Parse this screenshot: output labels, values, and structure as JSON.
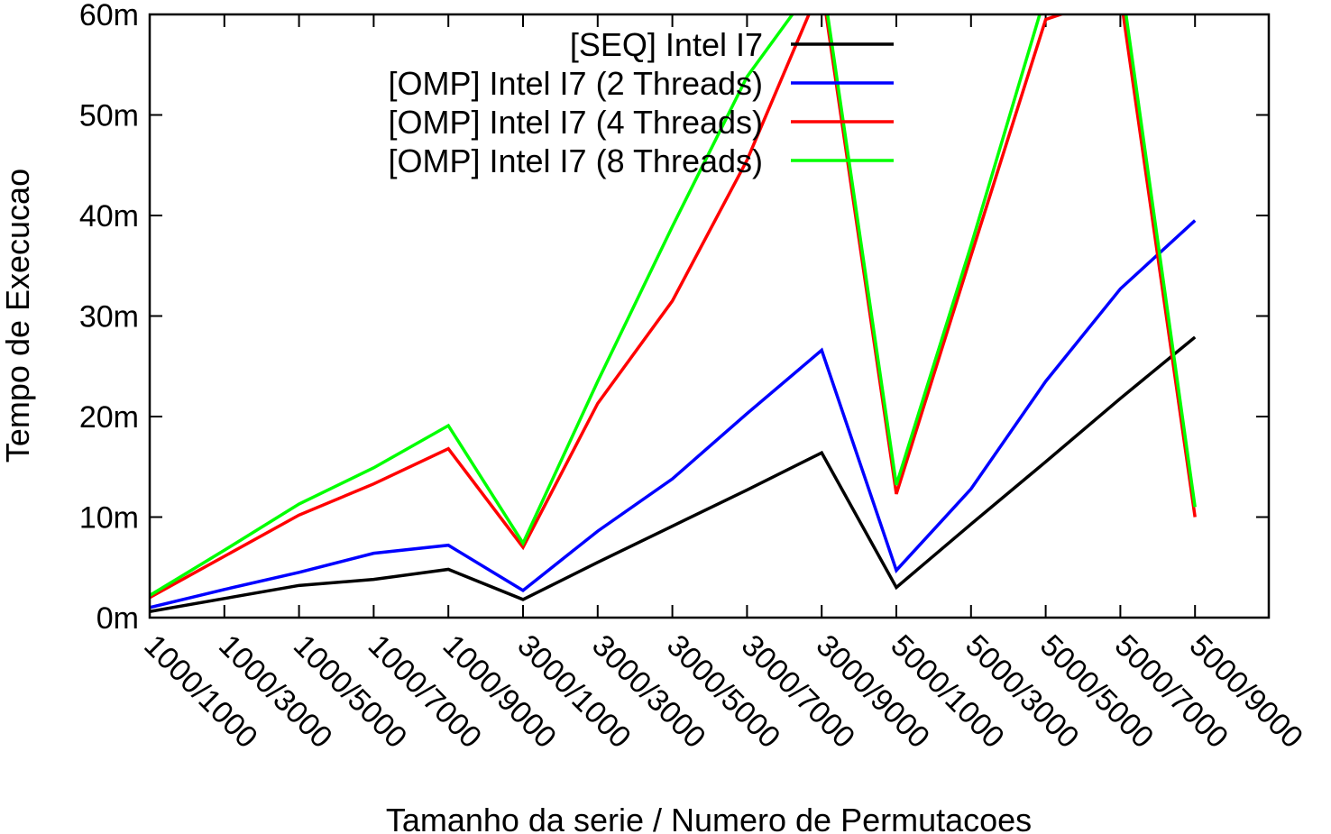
{
  "chart_data": {
    "type": "line",
    "title": "",
    "xlabel": "Tamanho da serie / Numero de Permutacoes",
    "ylabel": "Tempo de Execucao",
    "ylim": [
      0,
      60
    ],
    "y_ticks": [
      "0m",
      "10m",
      "20m",
      "30m",
      "40m",
      "50m",
      "60m"
    ],
    "categories": [
      "1000/1000",
      "1000/3000",
      "1000/5000",
      "1000/7000",
      "1000/9000",
      "3000/1000",
      "3000/3000",
      "3000/5000",
      "3000/7000",
      "3000/9000",
      "5000/1000",
      "5000/3000",
      "5000/5000",
      "5000/7000",
      "5000/9000"
    ],
    "grid": false,
    "legend_position": "top-right",
    "series": [
      {
        "name": "[SEQ] Intel I7",
        "color": "#000000",
        "values": [
          0.6,
          1.9,
          3.2,
          3.8,
          4.8,
          1.8,
          5.5,
          9.1,
          12.7,
          16.4,
          3.0,
          9.3,
          15.5,
          21.8,
          27.9
        ]
      },
      {
        "name": "[OMP] Intel I7 (2 Threads)",
        "color": "#0000ff",
        "values": [
          1.0,
          2.8,
          4.5,
          6.4,
          7.2,
          2.7,
          8.6,
          13.8,
          20.3,
          26.6,
          4.7,
          12.8,
          23.5,
          32.7,
          39.5
        ]
      },
      {
        "name": "[OMP] Intel I7 (4 Threads)",
        "color": "#ff0000",
        "values": [
          2.0,
          6.1,
          10.2,
          13.3,
          16.8,
          7.0,
          21.3,
          31.5,
          45.5,
          63.0,
          12.3,
          36.0,
          59.5,
          62.0,
          10.0
        ]
      },
      {
        "name": "[OMP] Intel I7 (8 Threads)",
        "color": "#00ff00",
        "values": [
          2.2,
          6.7,
          11.3,
          14.9,
          19.1,
          7.4,
          23.5,
          38.9,
          53.8,
          64.0,
          13.2,
          37.0,
          62.0,
          64.0,
          11.0
        ]
      }
    ]
  }
}
